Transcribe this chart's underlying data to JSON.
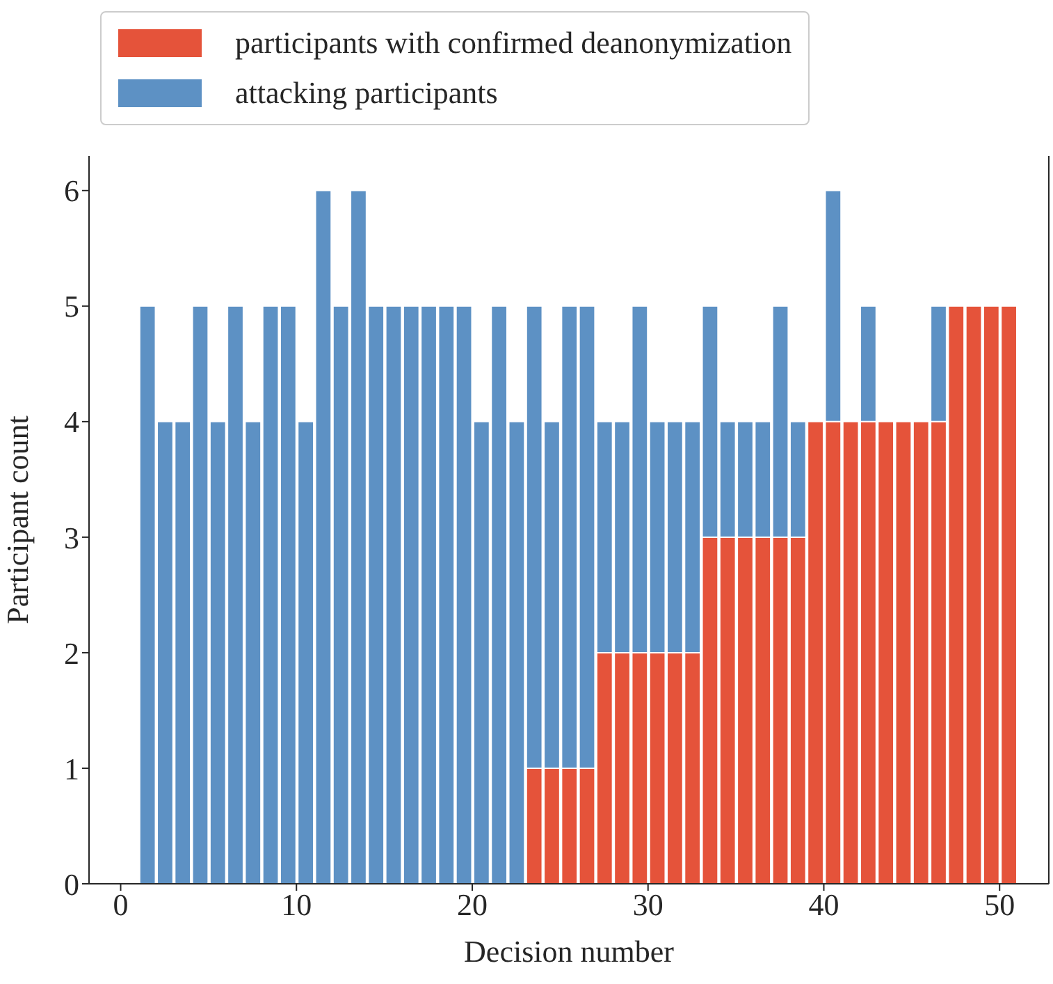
{
  "chart_data": {
    "type": "bar",
    "xlabel": "Decision number",
    "ylabel": "Participant count",
    "stacked": true,
    "legend": "top",
    "grid": false,
    "x": [
      1.5,
      2.5,
      3.5,
      4.5,
      5.5,
      6.5,
      7.5,
      8.5,
      9.5,
      10.5,
      11.5,
      12.5,
      13.5,
      14.5,
      15.5,
      16.5,
      17.5,
      18.5,
      19.5,
      20.5,
      21.5,
      22.5,
      23.5,
      24.5,
      25.5,
      26.5,
      27.5,
      28.5,
      29.5,
      30.5,
      31.5,
      32.5,
      33.5,
      34.5,
      35.5,
      36.5,
      37.5,
      38.5,
      39.5,
      40.5,
      41.5,
      42.5,
      43.5,
      44.5,
      45.5,
      46.5,
      47.5,
      48.5,
      49.5,
      50.5
    ],
    "series": [
      {
        "name": "participants with confirmed deanonymization",
        "color": "#e5533a",
        "values": [
          0,
          0,
          0,
          0,
          0,
          0,
          0,
          0,
          0,
          0,
          0,
          0,
          0,
          0,
          0,
          0,
          0,
          0,
          0,
          0,
          0,
          0,
          1,
          1,
          1,
          1,
          2,
          2,
          2,
          2,
          2,
          2,
          3,
          3,
          3,
          3,
          3,
          3,
          4,
          4,
          4,
          4,
          4,
          4,
          4,
          4,
          5,
          5,
          5,
          5
        ]
      },
      {
        "name": "attacking participants",
        "color": "#5d91c4",
        "values": [
          5,
          4,
          4,
          5,
          4,
          5,
          4,
          5,
          5,
          4,
          6,
          5,
          6,
          5,
          5,
          5,
          5,
          5,
          5,
          4,
          5,
          4,
          4,
          3,
          4,
          4,
          2,
          2,
          3,
          2,
          2,
          2,
          2,
          1,
          1,
          1,
          2,
          1,
          0,
          2,
          0,
          1,
          0,
          0,
          0,
          1,
          0,
          0,
          0,
          0
        ]
      }
    ],
    "xlim": [
      -1.8,
      52.8
    ],
    "xticks": [
      0,
      10,
      20,
      30,
      40,
      50
    ],
    "ylim": [
      0,
      6.3
    ],
    "yticks": [
      0,
      1,
      2,
      3,
      4,
      5,
      6
    ]
  }
}
